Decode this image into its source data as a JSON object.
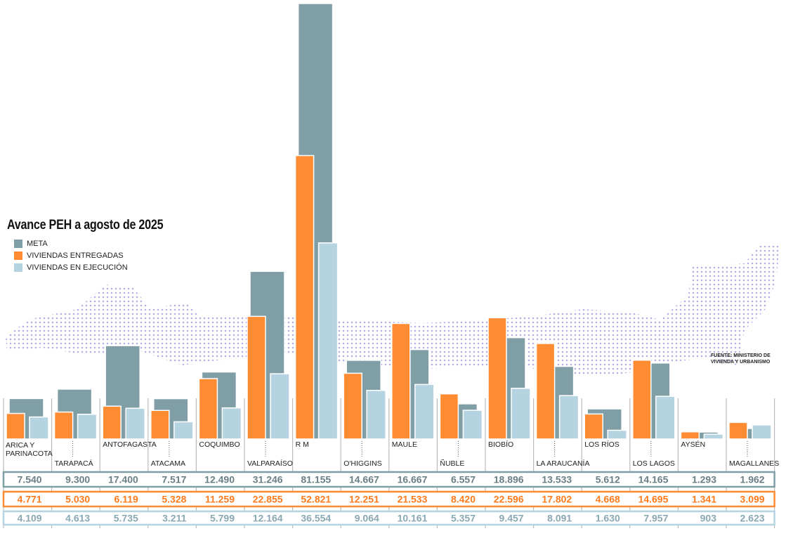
{
  "chart_data": {
    "type": "bar",
    "title": "Avance PEH a agosto de 2025",
    "source": "FUENTE: MINISTERIO DE VIVIENDA Y URBANISMO",
    "categories": [
      "ARICA Y PARINACOTA",
      "TARAPACÁ",
      "ANTOFAGASTA",
      "ATACAMA",
      "COQUIMBO",
      "VALPARAÍSO",
      "R M",
      "O'HIGGINS",
      "MAULE",
      "ÑUBLE",
      "BIOBÍO",
      "LA ARAUCANÍA",
      "LOS RÍOS",
      "LOS LAGOS",
      "AYSÉN",
      "MAGALLANES"
    ],
    "series": [
      {
        "name": "META",
        "color": "#7f9ea6",
        "values": [
          7540,
          9300,
          17400,
          7517,
          12490,
          31246,
          81155,
          14667,
          16667,
          6557,
          18896,
          13533,
          5612,
          14165,
          1293,
          1962
        ],
        "labels": [
          "7.540",
          "9.300",
          "17.400",
          "7.517",
          "12.490",
          "31.246",
          "81.155",
          "14.667",
          "16.667",
          "6.557",
          "18.896",
          "13.533",
          "5.612",
          "14.165",
          "1.293",
          "1.962"
        ]
      },
      {
        "name": "VIVIENDAS ENTREGADAS",
        "color": "#ff8c33",
        "values": [
          4771,
          5030,
          6119,
          5328,
          11259,
          22855,
          52821,
          12251,
          21533,
          8420,
          22596,
          17802,
          4668,
          14695,
          1341,
          3099
        ],
        "labels": [
          "4.771",
          "5.030",
          "6.119",
          "5.328",
          "11.259",
          "22.855",
          "52.821",
          "12.251",
          "21.533",
          "8.420",
          "22.596",
          "17.802",
          "4.668",
          "14.695",
          "1.341",
          "3.099"
        ]
      },
      {
        "name": "VIVIENDAS EN EJECUCIÓN",
        "color": "#b6d3e2",
        "values": [
          4109,
          4613,
          5735,
          3211,
          5799,
          12164,
          36554,
          9064,
          10161,
          5357,
          9457,
          8091,
          1630,
          7957,
          903,
          2623
        ],
        "labels": [
          "4.109",
          "4.613",
          "5.735",
          "3.211",
          "5.799",
          "12.164",
          "36.554",
          "9.064",
          "10.161",
          "5.357",
          "9.457",
          "8.091",
          "1.630",
          "7.957",
          "903",
          "2.623"
        ]
      }
    ],
    "ylim": [
      0,
      81155
    ],
    "legend": "left"
  }
}
